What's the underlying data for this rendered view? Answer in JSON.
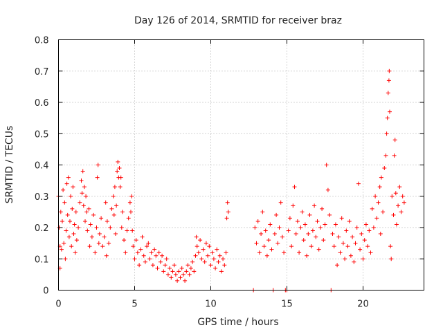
{
  "chart_data": {
    "type": "scatter",
    "title": "Day 126 of 2014, SRMTID for receiver braz",
    "xlabel": "GPS time / hours",
    "ylabel": "SRMTID / TECUs",
    "xlim": [
      0,
      24
    ],
    "ylim": [
      0,
      0.8
    ],
    "x_ticks": [
      0,
      5,
      10,
      15,
      20
    ],
    "y_ticks": [
      0,
      0.1,
      0.2,
      0.3,
      0.4,
      0.5,
      0.6,
      0.7,
      0.8
    ],
    "x_tick_labels": [
      "0",
      "5",
      "10",
      "15",
      "20"
    ],
    "y_tick_labels": [
      "0",
      "0.1",
      "0.2",
      "0.3",
      "0.4",
      "0.5",
      "0.6",
      "0.7",
      "0.8"
    ],
    "grid": true,
    "marker": "+",
    "marker_color": "#ff0000",
    "series": [
      {
        "name": "SRMTID",
        "points": [
          [
            0.0,
            0.3
          ],
          [
            0.05,
            0.2
          ],
          [
            0.1,
            0.14
          ],
          [
            0.1,
            0.07
          ],
          [
            0.15,
            0.25
          ],
          [
            0.2,
            0.13
          ],
          [
            0.25,
            0.22
          ],
          [
            0.3,
            0.32
          ],
          [
            0.35,
            0.15
          ],
          [
            0.4,
            0.28
          ],
          [
            0.45,
            0.1
          ],
          [
            0.5,
            0.19
          ],
          [
            0.55,
            0.34
          ],
          [
            0.6,
            0.24
          ],
          [
            0.65,
            0.36
          ],
          [
            0.7,
            0.17
          ],
          [
            0.75,
            0.22
          ],
          [
            0.8,
            0.3
          ],
          [
            0.85,
            0.14
          ],
          [
            0.9,
            0.26
          ],
          [
            0.95,
            0.33
          ],
          [
            1.0,
            0.18
          ],
          [
            1.05,
            0.21
          ],
          [
            1.1,
            0.12
          ],
          [
            1.15,
            0.25
          ],
          [
            1.2,
            0.16
          ],
          [
            1.3,
            0.2
          ],
          [
            1.4,
            0.28
          ],
          [
            1.5,
            0.35
          ],
          [
            1.55,
            0.31
          ],
          [
            1.6,
            0.38
          ],
          [
            1.65,
            0.27
          ],
          [
            1.7,
            0.33
          ],
          [
            1.75,
            0.22
          ],
          [
            1.8,
            0.3
          ],
          [
            1.85,
            0.25
          ],
          [
            1.9,
            0.19
          ],
          [
            2.0,
            0.26
          ],
          [
            2.05,
            0.14
          ],
          [
            2.1,
            0.21
          ],
          [
            2.2,
            0.17
          ],
          [
            2.3,
            0.24
          ],
          [
            2.4,
            0.12
          ],
          [
            2.5,
            0.2
          ],
          [
            2.55,
            0.36
          ],
          [
            2.6,
            0.4
          ],
          [
            2.65,
            0.15
          ],
          [
            2.7,
            0.18
          ],
          [
            2.8,
            0.23
          ],
          [
            2.9,
            0.14
          ],
          [
            3.0,
            0.17
          ],
          [
            3.1,
            0.28
          ],
          [
            3.15,
            0.11
          ],
          [
            3.2,
            0.22
          ],
          [
            3.3,
            0.15
          ],
          [
            3.4,
            0.2
          ],
          [
            3.5,
            0.26
          ],
          [
            3.6,
            0.3
          ],
          [
            3.65,
            0.24
          ],
          [
            3.7,
            0.33
          ],
          [
            3.75,
            0.18
          ],
          [
            3.8,
            0.27
          ],
          [
            3.85,
            0.38
          ],
          [
            3.9,
            0.41
          ],
          [
            3.95,
            0.36
          ],
          [
            4.0,
            0.39
          ],
          [
            4.05,
            0.33
          ],
          [
            4.1,
            0.36
          ],
          [
            4.15,
            0.2
          ],
          [
            4.2,
            0.25
          ],
          [
            4.3,
            0.16
          ],
          [
            4.4,
            0.12
          ],
          [
            4.5,
            0.19
          ],
          [
            4.6,
            0.23
          ],
          [
            4.7,
            0.28
          ],
          [
            4.75,
            0.25
          ],
          [
            4.8,
            0.3
          ],
          [
            4.85,
            0.19
          ],
          [
            4.9,
            0.14
          ],
          [
            5.0,
            0.1
          ],
          [
            5.1,
            0.16
          ],
          [
            5.2,
            0.12
          ],
          [
            5.3,
            0.08
          ],
          [
            5.4,
            0.13
          ],
          [
            5.5,
            0.17
          ],
          [
            5.6,
            0.11
          ],
          [
            5.7,
            0.09
          ],
          [
            5.8,
            0.14
          ],
          [
            5.9,
            0.15
          ],
          [
            6.0,
            0.1
          ],
          [
            6.1,
            0.12
          ],
          [
            6.2,
            0.08
          ],
          [
            6.3,
            0.13
          ],
          [
            6.4,
            0.11
          ],
          [
            6.5,
            0.07
          ],
          [
            6.6,
            0.12
          ],
          [
            6.7,
            0.09
          ],
          [
            6.8,
            0.11
          ],
          [
            6.9,
            0.06
          ],
          [
            7.0,
            0.08
          ],
          [
            7.1,
            0.1
          ],
          [
            7.2,
            0.05
          ],
          [
            7.3,
            0.07
          ],
          [
            7.4,
            0.04
          ],
          [
            7.5,
            0.06
          ],
          [
            7.6,
            0.08
          ],
          [
            7.7,
            0.05
          ],
          [
            7.8,
            0.03
          ],
          [
            7.9,
            0.06
          ],
          [
            8.0,
            0.04
          ],
          [
            8.1,
            0.07
          ],
          [
            8.2,
            0.05
          ],
          [
            8.3,
            0.03
          ],
          [
            8.4,
            0.06
          ],
          [
            8.5,
            0.08
          ],
          [
            8.6,
            0.05
          ],
          [
            8.7,
            0.07
          ],
          [
            8.8,
            0.09
          ],
          [
            8.9,
            0.06
          ],
          [
            9.0,
            0.11
          ],
          [
            9.05,
            0.17
          ],
          [
            9.1,
            0.14
          ],
          [
            9.2,
            0.12
          ],
          [
            9.3,
            0.16
          ],
          [
            9.4,
            0.1
          ],
          [
            9.5,
            0.13
          ],
          [
            9.6,
            0.09
          ],
          [
            9.7,
            0.15
          ],
          [
            9.8,
            0.11
          ],
          [
            9.9,
            0.14
          ],
          [
            10.0,
            0.08
          ],
          [
            10.1,
            0.12
          ],
          [
            10.2,
            0.1
          ],
          [
            10.3,
            0.07
          ],
          [
            10.4,
            0.13
          ],
          [
            10.5,
            0.09
          ],
          [
            10.6,
            0.11
          ],
          [
            10.7,
            0.06
          ],
          [
            10.8,
            0.1
          ],
          [
            10.9,
            0.08
          ],
          [
            11.0,
            0.12
          ],
          [
            11.05,
            0.23
          ],
          [
            11.1,
            0.28
          ],
          [
            11.15,
            0.25
          ],
          [
            12.8,
            0.0
          ],
          [
            12.9,
            0.2
          ],
          [
            13.0,
            0.15
          ],
          [
            13.1,
            0.22
          ],
          [
            13.2,
            0.12
          ],
          [
            13.3,
            0.18
          ],
          [
            13.4,
            0.25
          ],
          [
            13.5,
            0.14
          ],
          [
            13.6,
            0.19
          ],
          [
            13.7,
            0.11
          ],
          [
            13.8,
            0.16
          ],
          [
            13.9,
            0.21
          ],
          [
            14.0,
            0.13
          ],
          [
            14.1,
            0.0
          ],
          [
            14.2,
            0.18
          ],
          [
            14.3,
            0.24
          ],
          [
            14.4,
            0.15
          ],
          [
            14.5,
            0.2
          ],
          [
            14.6,
            0.28
          ],
          [
            14.7,
            0.17
          ],
          [
            14.8,
            0.12
          ],
          [
            14.9,
            0.0
          ],
          [
            15.0,
            0.0
          ],
          [
            15.1,
            0.19
          ],
          [
            15.2,
            0.23
          ],
          [
            15.3,
            0.14
          ],
          [
            15.4,
            0.27
          ],
          [
            15.5,
            0.33
          ],
          [
            15.6,
            0.18
          ],
          [
            15.7,
            0.22
          ],
          [
            15.8,
            0.12
          ],
          [
            15.9,
            0.2
          ],
          [
            16.0,
            0.25
          ],
          [
            16.1,
            0.16
          ],
          [
            16.2,
            0.21
          ],
          [
            16.3,
            0.11
          ],
          [
            16.4,
            0.18
          ],
          [
            16.5,
            0.24
          ],
          [
            16.6,
            0.14
          ],
          [
            16.7,
            0.19
          ],
          [
            16.8,
            0.27
          ],
          [
            16.9,
            0.17
          ],
          [
            17.0,
            0.22
          ],
          [
            17.1,
            0.13
          ],
          [
            17.2,
            0.2
          ],
          [
            17.3,
            0.26
          ],
          [
            17.4,
            0.16
          ],
          [
            17.5,
            0.21
          ],
          [
            17.6,
            0.4
          ],
          [
            17.7,
            0.32
          ],
          [
            17.8,
            0.24
          ],
          [
            17.9,
            0.0
          ],
          [
            18.0,
            0.18
          ],
          [
            18.1,
            0.14
          ],
          [
            18.2,
            0.21
          ],
          [
            18.3,
            0.08
          ],
          [
            18.4,
            0.17
          ],
          [
            18.5,
            0.12
          ],
          [
            18.6,
            0.23
          ],
          [
            18.7,
            0.15
          ],
          [
            18.8,
            0.1
          ],
          [
            18.9,
            0.19
          ],
          [
            19.0,
            0.14
          ],
          [
            19.1,
            0.22
          ],
          [
            19.2,
            0.11
          ],
          [
            19.3,
            0.17
          ],
          [
            19.4,
            0.09
          ],
          [
            19.5,
            0.15
          ],
          [
            19.6,
            0.2
          ],
          [
            19.7,
            0.34
          ],
          [
            19.8,
            0.13
          ],
          [
            19.9,
            0.18
          ],
          [
            20.0,
            0.1
          ],
          [
            20.1,
            0.16
          ],
          [
            20.2,
            0.21
          ],
          [
            20.3,
            0.14
          ],
          [
            20.4,
            0.19
          ],
          [
            20.5,
            0.12
          ],
          [
            20.6,
            0.26
          ],
          [
            20.7,
            0.2
          ],
          [
            20.8,
            0.3
          ],
          [
            20.9,
            0.23
          ],
          [
            21.0,
            0.28
          ],
          [
            21.1,
            0.33
          ],
          [
            21.15,
            0.18
          ],
          [
            21.2,
            0.36
          ],
          [
            21.3,
            0.25
          ],
          [
            21.4,
            0.39
          ],
          [
            21.5,
            0.43
          ],
          [
            21.55,
            0.5
          ],
          [
            21.6,
            0.55
          ],
          [
            21.65,
            0.63
          ],
          [
            21.7,
            0.67
          ],
          [
            21.72,
            0.7
          ],
          [
            21.75,
            0.57
          ],
          [
            21.8,
            0.14
          ],
          [
            21.85,
            0.1
          ],
          [
            21.9,
            0.3
          ],
          [
            22.0,
            0.24
          ],
          [
            22.05,
            0.43
          ],
          [
            22.1,
            0.48
          ],
          [
            22.15,
            0.31
          ],
          [
            22.2,
            0.21
          ],
          [
            22.3,
            0.27
          ],
          [
            22.4,
            0.33
          ],
          [
            22.5,
            0.25
          ],
          [
            22.6,
            0.3
          ],
          [
            22.7,
            0.28
          ]
        ]
      }
    ]
  }
}
